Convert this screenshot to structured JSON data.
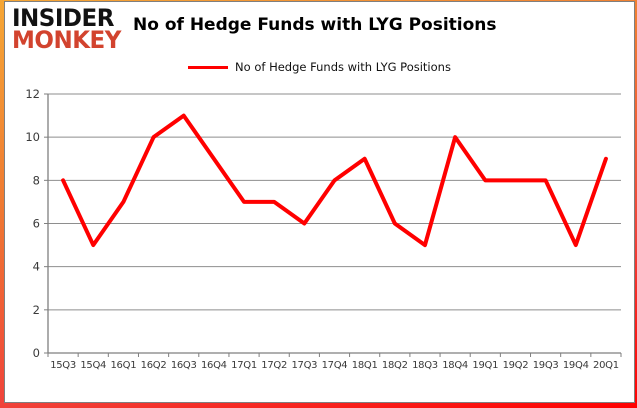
{
  "brand": {
    "line1": "INSIDER",
    "line2": "MONKEY",
    "line1_color": "#121212",
    "line2_color": "#d2432e"
  },
  "title": "No of Hedge Funds with LYG Positions",
  "legend": {
    "label": "No of Hedge Funds with LYG Positions",
    "swatch_color": "#ff0000"
  },
  "frame": {
    "border_gradient_start": "#f6a735",
    "border_gradient_end": "#ff0000",
    "inner_border_color": "#7f7f7f"
  },
  "chart_data": {
    "type": "line",
    "title": "No of Hedge Funds with LYG Positions",
    "series": [
      {
        "name": "No of Hedge Funds with LYG Positions",
        "values": [
          8,
          5,
          7,
          10,
          11,
          9,
          7,
          7,
          6,
          8,
          9,
          6,
          5,
          10,
          8,
          8,
          8,
          5,
          9
        ]
      }
    ],
    "categories": [
      "15Q3",
      "15Q4",
      "16Q1",
      "16Q2",
      "16Q3",
      "16Q4",
      "17Q1",
      "17Q2",
      "17Q3",
      "17Q4",
      "18Q1",
      "18Q2",
      "18Q3",
      "18Q4",
      "19Q1",
      "19Q2",
      "19Q3",
      "19Q4",
      "20Q1"
    ],
    "xlabel": "",
    "ylabel": "",
    "ylim": [
      0,
      12
    ],
    "ytick_step": 2,
    "grid": true,
    "legend_position": "top-center",
    "line_color": "#ff0000",
    "line_width": 4,
    "grid_color": "#8e8e8e",
    "axis_color": "#7f7f7f",
    "tick_label_color": "#3a3a3a"
  }
}
